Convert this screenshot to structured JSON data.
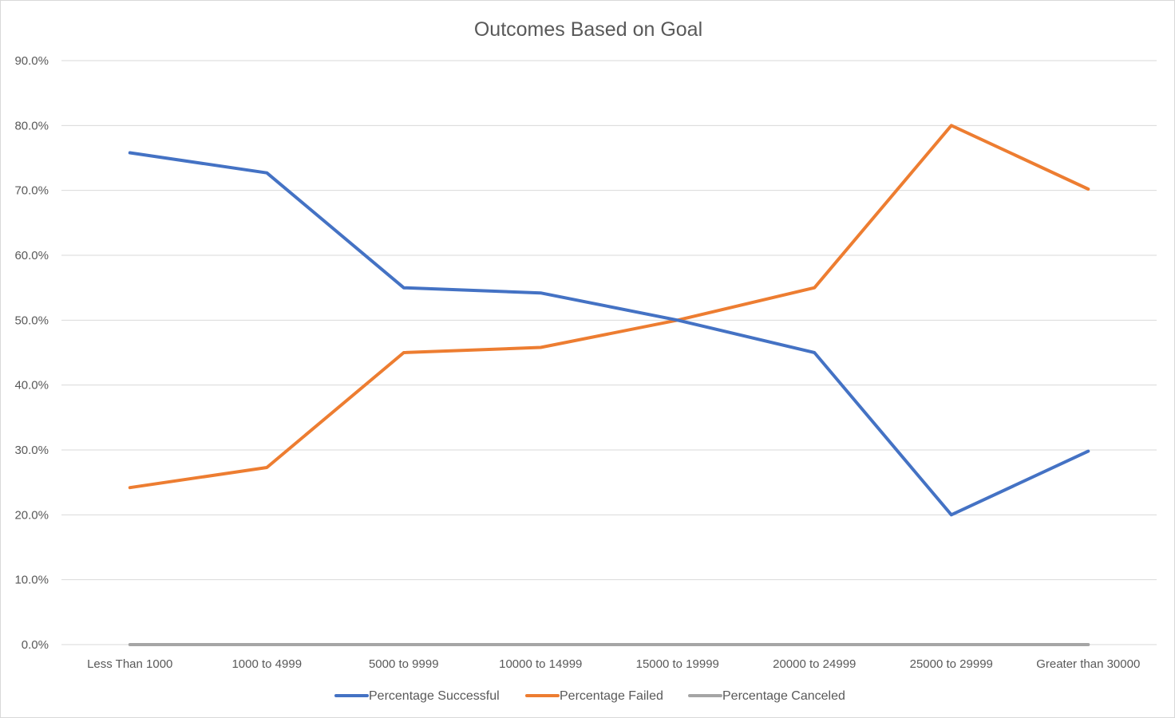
{
  "chart_data": {
    "type": "line",
    "title": "Outcomes Based on Goal",
    "xlabel": "",
    "ylabel": "",
    "categories": [
      "Less Than 1000",
      "1000 to 4999",
      "5000 to 9999",
      "10000 to 14999",
      "15000 to 19999",
      "20000 to 24999",
      "25000 to 29999",
      "Greater than 30000"
    ],
    "y_ticks": [
      "0.0%",
      "10.0%",
      "20.0%",
      "30.0%",
      "40.0%",
      "50.0%",
      "60.0%",
      "70.0%",
      "80.0%",
      "90.0%"
    ],
    "ylim": [
      0,
      90
    ],
    "grid": true,
    "legend_position": "bottom",
    "series": [
      {
        "name": "Percentage Successful",
        "color": "#4472c4",
        "values": [
          75.8,
          72.7,
          55.0,
          54.2,
          50.0,
          45.0,
          20.0,
          29.8
        ]
      },
      {
        "name": "Percentage Failed",
        "color": "#ed7d31",
        "values": [
          24.2,
          27.3,
          45.0,
          45.8,
          50.0,
          55.0,
          80.0,
          70.2
        ]
      },
      {
        "name": "Percentage Canceled",
        "color": "#a5a5a5",
        "values": [
          0,
          0,
          0,
          0,
          0,
          0,
          0,
          0
        ]
      }
    ]
  }
}
